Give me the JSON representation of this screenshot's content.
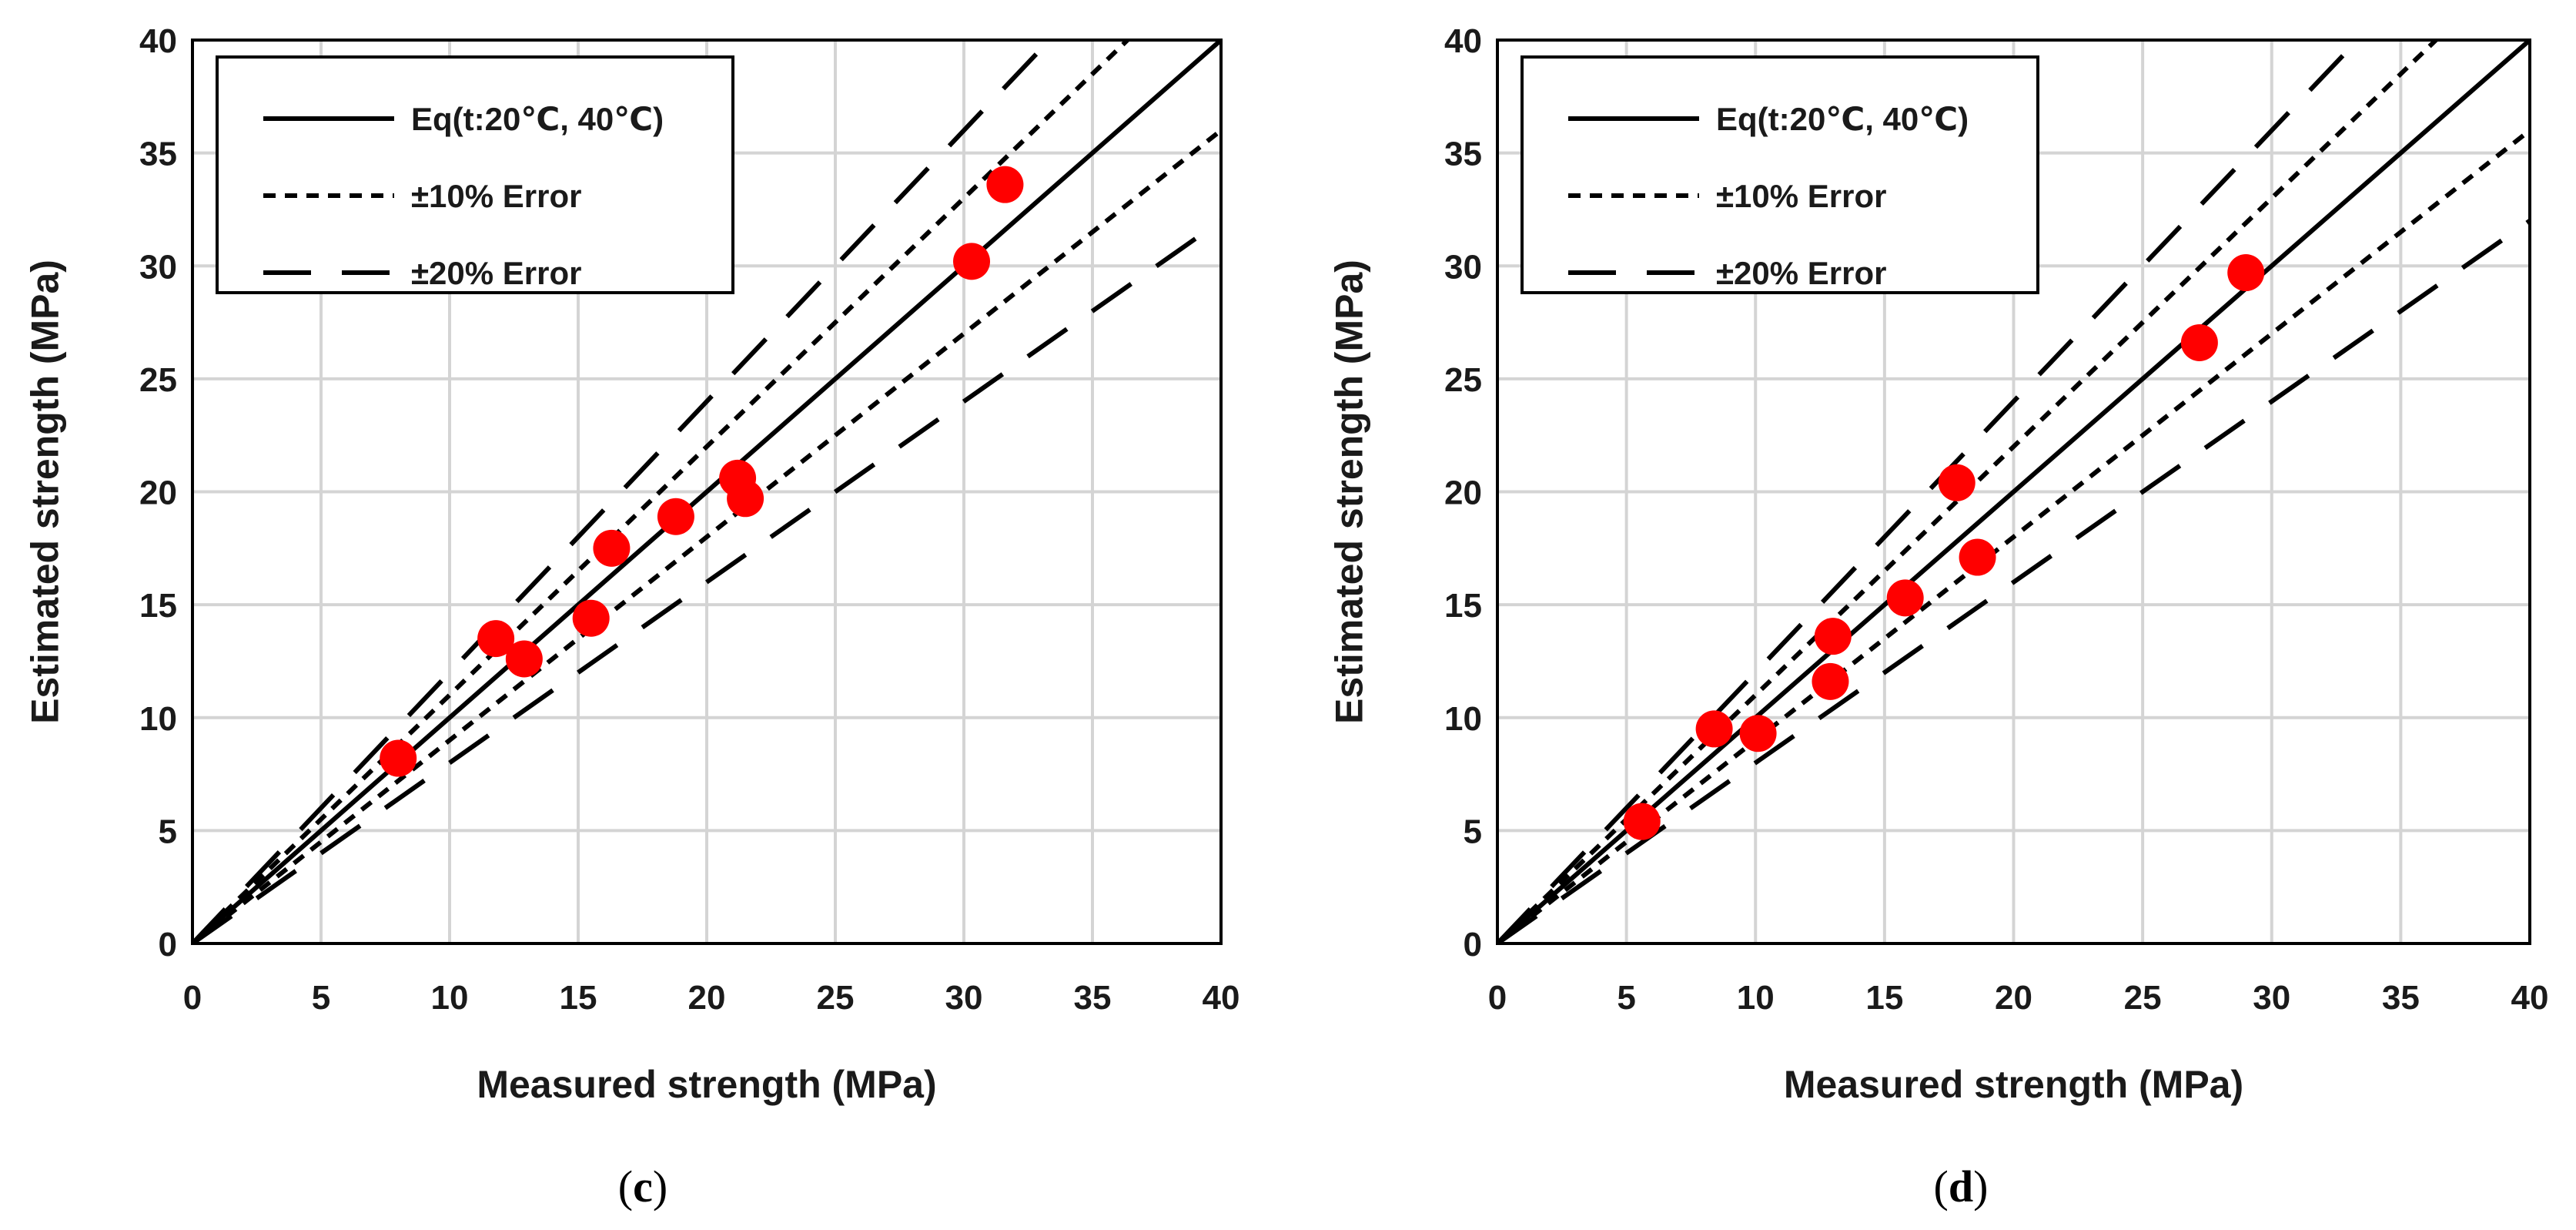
{
  "chart_data": [
    {
      "type": "scatter",
      "panel_label": {
        "open": "(",
        "letter": "c",
        "close": ")"
      },
      "xlabel": "Measured strength (MPa)",
      "ylabel": "Estimated strength (MPa)",
      "xlim": [
        0,
        40
      ],
      "ylim": [
        0,
        40
      ],
      "xticks": [
        0,
        5,
        10,
        15,
        20,
        25,
        30,
        35,
        40
      ],
      "yticks": [
        0,
        5,
        10,
        15,
        20,
        25,
        30,
        35,
        40
      ],
      "grid": true,
      "legend_position": "top-left",
      "legend": [
        {
          "label": "Eq(t:20℃, 40℃)",
          "style": "solid"
        },
        {
          "label": "±10% Error",
          "style": "short-dash"
        },
        {
          "label": "±20% Error",
          "style": "long-dash"
        }
      ],
      "reference_lines": [
        {
          "name": "Eq(t:20℃, 40℃)",
          "slope": 1.0,
          "style": "solid"
        },
        {
          "name": "+10% Error",
          "slope": 1.1,
          "style": "short-dash"
        },
        {
          "name": "-10% Error",
          "slope": 0.9,
          "style": "short-dash"
        },
        {
          "name": "+20% Error",
          "slope": 1.2,
          "style": "long-dash"
        },
        {
          "name": "-20% Error",
          "slope": 0.8,
          "style": "long-dash"
        }
      ],
      "marker_color": "#ff0000",
      "points": [
        {
          "x": 8.0,
          "y": 8.2
        },
        {
          "x": 11.8,
          "y": 13.5
        },
        {
          "x": 12.9,
          "y": 12.6
        },
        {
          "x": 15.5,
          "y": 14.4
        },
        {
          "x": 16.3,
          "y": 17.5
        },
        {
          "x": 18.8,
          "y": 18.9
        },
        {
          "x": 21.2,
          "y": 20.6
        },
        {
          "x": 21.5,
          "y": 19.7
        },
        {
          "x": 30.3,
          "y": 30.2
        },
        {
          "x": 31.6,
          "y": 33.6
        }
      ]
    },
    {
      "type": "scatter",
      "panel_label": {
        "open": "(",
        "letter": "d",
        "close": ")"
      },
      "xlabel": "Measured strength (MPa)",
      "ylabel": "Estimated strength (MPa)",
      "xlim": [
        0,
        40
      ],
      "ylim": [
        0,
        40
      ],
      "xticks": [
        0,
        5,
        10,
        15,
        20,
        25,
        30,
        35,
        40
      ],
      "yticks": [
        0,
        5,
        10,
        15,
        20,
        25,
        30,
        35,
        40
      ],
      "grid": true,
      "legend_position": "top-left",
      "legend": [
        {
          "label": "Eq(t:20℃, 40℃)",
          "style": "solid"
        },
        {
          "label": "±10% Error",
          "style": "short-dash"
        },
        {
          "label": "±20% Error",
          "style": "long-dash"
        }
      ],
      "reference_lines": [
        {
          "name": "Eq(t:20℃, 40℃)",
          "slope": 1.0,
          "style": "solid"
        },
        {
          "name": "+10% Error",
          "slope": 1.1,
          "style": "short-dash"
        },
        {
          "name": "-10% Error",
          "slope": 0.9,
          "style": "short-dash"
        },
        {
          "name": "+20% Error",
          "slope": 1.2,
          "style": "long-dash"
        },
        {
          "name": "-20% Error",
          "slope": 0.8,
          "style": "long-dash"
        }
      ],
      "marker_color": "#ff0000",
      "points": [
        {
          "x": 5.6,
          "y": 5.4
        },
        {
          "x": 8.4,
          "y": 9.5
        },
        {
          "x": 10.1,
          "y": 9.3
        },
        {
          "x": 12.9,
          "y": 11.6
        },
        {
          "x": 13.0,
          "y": 13.6
        },
        {
          "x": 15.8,
          "y": 15.3
        },
        {
          "x": 17.8,
          "y": 20.4
        },
        {
          "x": 18.6,
          "y": 17.1
        },
        {
          "x": 27.2,
          "y": 26.6
        },
        {
          "x": 29.0,
          "y": 29.7
        }
      ]
    }
  ]
}
